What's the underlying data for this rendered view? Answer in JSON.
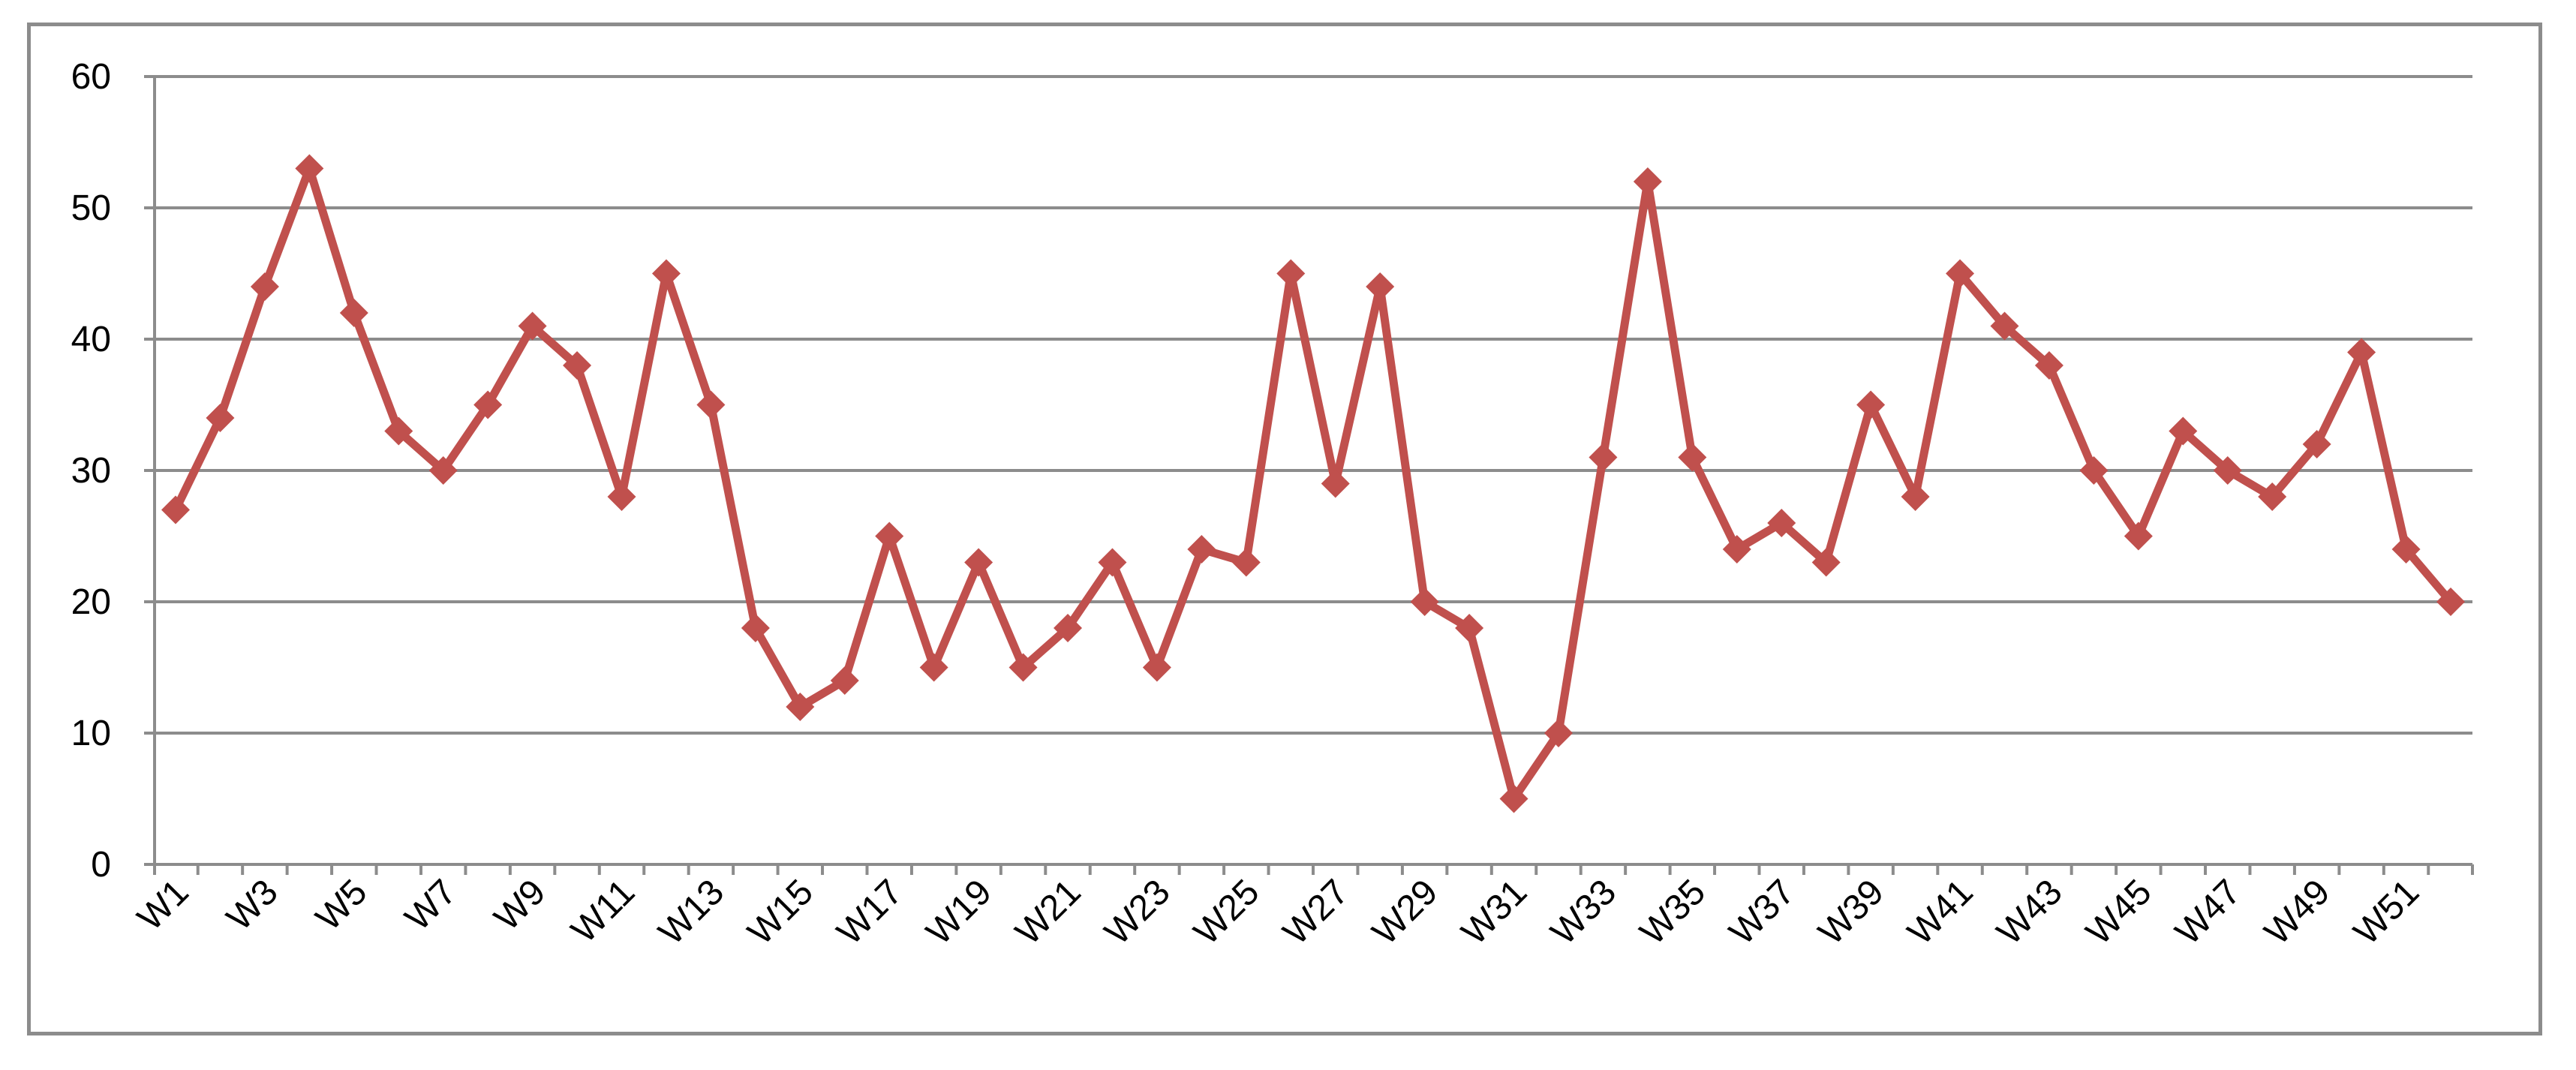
{
  "chart_data": {
    "type": "line",
    "title": "",
    "xlabel": "",
    "ylabel": "",
    "categories": [
      "W1",
      "W2",
      "W3",
      "W4",
      "W5",
      "W6",
      "W7",
      "W8",
      "W9",
      "W10",
      "W11",
      "W12",
      "W13",
      "W14",
      "W15",
      "W16",
      "W17",
      "W18",
      "W19",
      "W20",
      "W21",
      "W22",
      "W23",
      "W24",
      "W25",
      "W26",
      "W27",
      "W28",
      "W29",
      "W30",
      "W31",
      "W32",
      "W33",
      "W34",
      "W35",
      "W36",
      "W37",
      "W38",
      "W39",
      "W40",
      "W41",
      "W42",
      "W43",
      "W44",
      "W45",
      "W46",
      "W47",
      "W48",
      "W49",
      "W50",
      "W51",
      "W52"
    ],
    "x_tick_labels": [
      "W1",
      "W3",
      "W5",
      "W7",
      "W9",
      "W11",
      "W13",
      "W15",
      "W17",
      "W19",
      "W21",
      "W23",
      "W25",
      "W27",
      "W29",
      "W31",
      "W33",
      "W35",
      "W37",
      "W39",
      "W41",
      "W43",
      "W45",
      "W47",
      "W49",
      "W51"
    ],
    "series": [
      {
        "values": [
          27,
          34,
          44,
          53,
          42,
          33,
          30,
          35,
          41,
          38,
          28,
          45,
          35,
          18,
          12,
          14,
          25,
          15,
          23,
          15,
          18,
          23,
          15,
          24,
          23,
          45,
          29,
          44,
          20,
          18,
          5,
          10,
          31,
          52,
          31,
          24,
          26,
          23,
          35,
          28,
          45,
          41,
          38,
          30,
          25,
          33,
          30,
          28,
          32,
          39,
          24,
          20
        ],
        "color": "#c0504d",
        "marker": "diamond"
      }
    ],
    "ylim": [
      0,
      60
    ],
    "y_ticks": [
      0,
      10,
      20,
      30,
      40,
      50,
      60
    ],
    "grid": true,
    "legend": "none"
  }
}
